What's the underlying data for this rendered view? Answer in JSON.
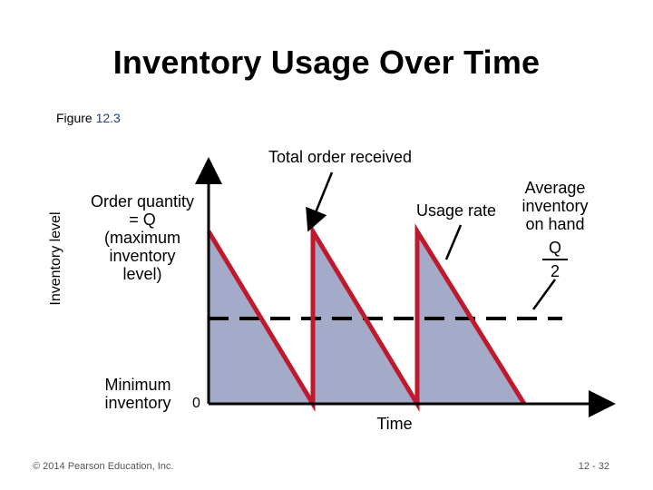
{
  "title": "Inventory Usage Over Time",
  "figure": {
    "prefix": "Figure",
    "number": "12.3"
  },
  "axis": {
    "y_label": "Inventory level",
    "x_label": "Time",
    "origin": "0"
  },
  "labels": {
    "order_quantity": [
      "Order quantity",
      "= Q",
      "(maximum",
      "inventory",
      "level)"
    ],
    "total_order_received": "Total order received",
    "usage_rate": "Usage rate",
    "average_inventory": [
      "Average",
      "inventory",
      "on hand"
    ],
    "average_fraction": {
      "numerator": "Q",
      "denominator": "2"
    },
    "minimum_inventory": [
      "Minimum",
      "inventory"
    ]
  },
  "footer": {
    "copyright": "© 2014 Pearson Education, Inc.",
    "page": "12 - 32"
  },
  "colors": {
    "sawtooth": "#c0182c",
    "fill": "#a3abc8",
    "axis": "#000000",
    "average_line": "#000000"
  },
  "cycles": 3,
  "average_level": "Q/2"
}
